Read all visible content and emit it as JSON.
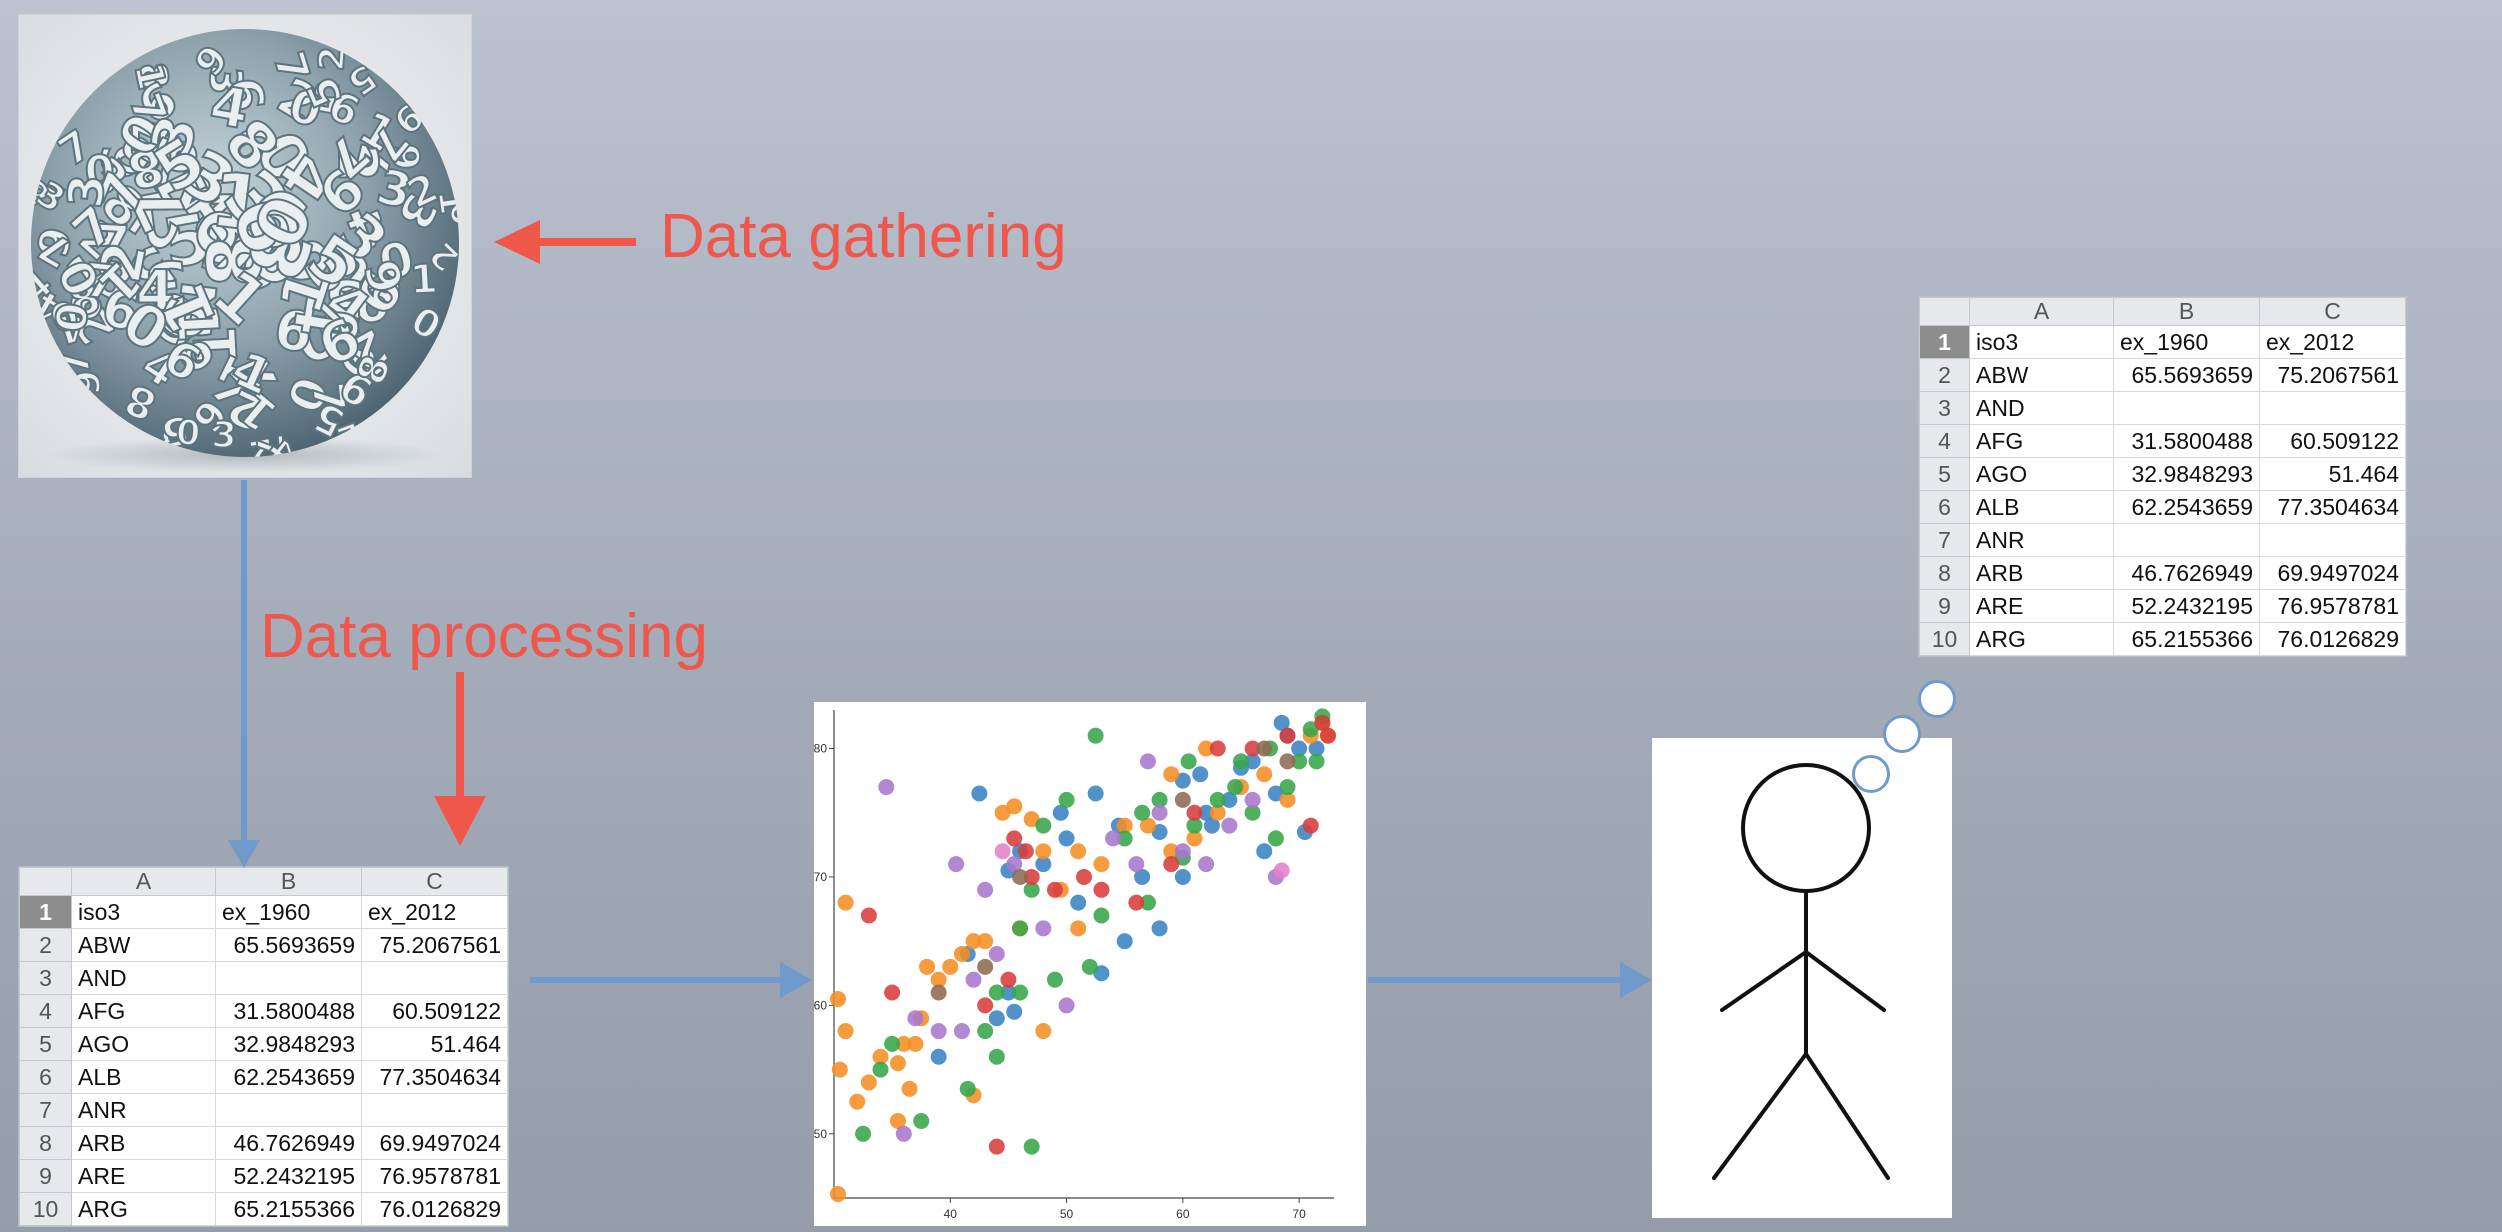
{
  "labels": {
    "gathering": "Data gathering",
    "processing": "Data processing"
  },
  "image_alt": "ball of numbers",
  "sheet": {
    "columns": [
      "A",
      "B",
      "C"
    ],
    "rows": [
      {
        "n": "1",
        "a": "iso3",
        "b": "ex_1960",
        "c": "ex_2012"
      },
      {
        "n": "2",
        "a": "ABW",
        "b": "65.5693659",
        "c": "75.2067561"
      },
      {
        "n": "3",
        "a": "AND",
        "b": "",
        "c": ""
      },
      {
        "n": "4",
        "a": "AFG",
        "b": "31.5800488",
        "c": "60.509122"
      },
      {
        "n": "5",
        "a": "AGO",
        "b": "32.9848293",
        "c": "51.464"
      },
      {
        "n": "6",
        "a": "ALB",
        "b": "62.2543659",
        "c": "77.3504634"
      },
      {
        "n": "7",
        "a": "ANR",
        "b": "",
        "c": ""
      },
      {
        "n": "8",
        "a": "ARB",
        "b": "46.7626949",
        "c": "69.9497024"
      },
      {
        "n": "9",
        "a": "ARE",
        "b": "52.2432195",
        "c": "76.9578781"
      },
      {
        "n": "10",
        "a": "ARG",
        "b": "65.2155366",
        "c": "76.0126829"
      }
    ]
  },
  "colors": {
    "label": "#f0574b",
    "flow_arrow": "#6f9acb",
    "series": [
      "#3a83c3",
      "#f58d23",
      "#37a64a",
      "#d83c3c",
      "#a878cc",
      "#8e6a52",
      "#e47fc8"
    ]
  },
  "chart_data": {
    "type": "scatter",
    "title": "",
    "xlabel": "",
    "ylabel": "",
    "xlim": [
      30,
      73
    ],
    "ylim": [
      45,
      83
    ],
    "xticks": [
      40,
      50,
      60,
      70
    ],
    "yticks": [
      50,
      60,
      70,
      80
    ],
    "series": [
      {
        "color": "#3a83c3",
        "points": [
          [
            42.5,
            76.5
          ],
          [
            48,
            71
          ],
          [
            52.5,
            76.5
          ],
          [
            54.5,
            74
          ],
          [
            58,
            73.5
          ],
          [
            60,
            77.5
          ],
          [
            61.5,
            78
          ],
          [
            65,
            78.5
          ],
          [
            68,
            76.5
          ],
          [
            70,
            80
          ],
          [
            68.5,
            82
          ],
          [
            41.5,
            64
          ],
          [
            44,
            59
          ],
          [
            45,
            61
          ],
          [
            45.5,
            59.5
          ],
          [
            55,
            65
          ],
          [
            58,
            66
          ],
          [
            60,
            70
          ],
          [
            62,
            75
          ],
          [
            66,
            79
          ],
          [
            69,
            81
          ],
          [
            71.5,
            80
          ],
          [
            39,
            56
          ],
          [
            46,
            72
          ],
          [
            49.5,
            75
          ],
          [
            50,
            73
          ],
          [
            51,
            68
          ],
          [
            56.5,
            70
          ],
          [
            62.5,
            74
          ],
          [
            64,
            76
          ],
          [
            67,
            72
          ],
          [
            70.5,
            73.5
          ],
          [
            45,
            70.5
          ],
          [
            53,
            62.5
          ]
        ]
      },
      {
        "color": "#f58d23",
        "points": [
          [
            30,
            60.5
          ],
          [
            31,
            68
          ],
          [
            30.5,
            55
          ],
          [
            32,
            52.5
          ],
          [
            34,
            56
          ],
          [
            35.5,
            55.5
          ],
          [
            37,
            57
          ],
          [
            35.5,
            51
          ],
          [
            36,
            57
          ],
          [
            37.5,
            59
          ],
          [
            38,
            63
          ],
          [
            39,
            62
          ],
          [
            40,
            63
          ],
          [
            41,
            64
          ],
          [
            42,
            65
          ],
          [
            44.5,
            75
          ],
          [
            45.5,
            75.5
          ],
          [
            47,
            74.5
          ],
          [
            48,
            72
          ],
          [
            49.5,
            69
          ],
          [
            51,
            72
          ],
          [
            53,
            71
          ],
          [
            55,
            74
          ],
          [
            57,
            74
          ],
          [
            59,
            72
          ],
          [
            61,
            73
          ],
          [
            63,
            75
          ],
          [
            65,
            77
          ],
          [
            67,
            78
          ],
          [
            69,
            76
          ],
          [
            71,
            81
          ],
          [
            72,
            82
          ],
          [
            30,
            45
          ],
          [
            31,
            58
          ],
          [
            33,
            54
          ],
          [
            36.5,
            53.5
          ],
          [
            42,
            53
          ],
          [
            48,
            58
          ],
          [
            51,
            66
          ],
          [
            46,
            66
          ],
          [
            43,
            65
          ],
          [
            59,
            78
          ],
          [
            62,
            80
          ],
          [
            72.5,
            81
          ]
        ]
      },
      {
        "color": "#37a64a",
        "points": [
          [
            32.5,
            50
          ],
          [
            35,
            57
          ],
          [
            34,
            55
          ],
          [
            37.5,
            51
          ],
          [
            41.5,
            53.5
          ],
          [
            43,
            58
          ],
          [
            44,
            61
          ],
          [
            46,
            66
          ],
          [
            47,
            69
          ],
          [
            48,
            74
          ],
          [
            50,
            76
          ],
          [
            52.5,
            81
          ],
          [
            52,
            63
          ],
          [
            55,
            73
          ],
          [
            56.5,
            75
          ],
          [
            58,
            76
          ],
          [
            60,
            71.5
          ],
          [
            61,
            74
          ],
          [
            63,
            76
          ],
          [
            65,
            79
          ],
          [
            66,
            75
          ],
          [
            68,
            73
          ],
          [
            69,
            77
          ],
          [
            70,
            79
          ],
          [
            71,
            81.5
          ],
          [
            72,
            82.5
          ],
          [
            71.5,
            79
          ],
          [
            47,
            49
          ],
          [
            44,
            56
          ],
          [
            46,
            61
          ],
          [
            49,
            62
          ],
          [
            53,
            67
          ],
          [
            57,
            68
          ],
          [
            60.5,
            79
          ],
          [
            64.5,
            77
          ],
          [
            67.5,
            80
          ]
        ]
      },
      {
        "color": "#d83c3c",
        "points": [
          [
            33,
            67
          ],
          [
            44,
            49
          ],
          [
            45.5,
            73
          ],
          [
            46.5,
            72
          ],
          [
            47,
            70
          ],
          [
            49,
            69
          ],
          [
            51.5,
            70
          ],
          [
            53,
            69
          ],
          [
            56,
            68
          ],
          [
            59,
            71
          ],
          [
            61,
            75
          ],
          [
            63,
            80
          ],
          [
            66,
            80
          ],
          [
            69,
            81
          ],
          [
            71,
            74
          ],
          [
            73,
            81
          ],
          [
            72,
            82
          ],
          [
            35,
            61
          ],
          [
            43,
            60
          ],
          [
            45,
            62
          ]
        ]
      },
      {
        "color": "#a878cc",
        "points": [
          [
            34.5,
            77
          ],
          [
            36,
            50
          ],
          [
            39,
            58
          ],
          [
            40.5,
            71
          ],
          [
            42,
            62
          ],
          [
            44,
            64
          ],
          [
            45.5,
            71
          ],
          [
            48,
            66
          ],
          [
            50,
            60
          ],
          [
            54,
            73
          ],
          [
            56,
            71
          ],
          [
            58,
            75
          ],
          [
            60,
            72
          ],
          [
            62,
            71
          ],
          [
            64,
            74
          ],
          [
            66,
            76
          ],
          [
            68,
            70
          ],
          [
            57,
            79
          ],
          [
            37,
            59
          ],
          [
            43,
            69
          ],
          [
            41,
            58
          ]
        ]
      },
      {
        "color": "#8e6a52",
        "points": [
          [
            39,
            61
          ],
          [
            43,
            63
          ],
          [
            46,
            70
          ],
          [
            60,
            76
          ],
          [
            67,
            80
          ],
          [
            69,
            79
          ]
        ]
      },
      {
        "color": "#e47fc8",
        "points": [
          [
            68.5,
            70.5
          ],
          [
            44.5,
            72
          ]
        ]
      }
    ]
  }
}
